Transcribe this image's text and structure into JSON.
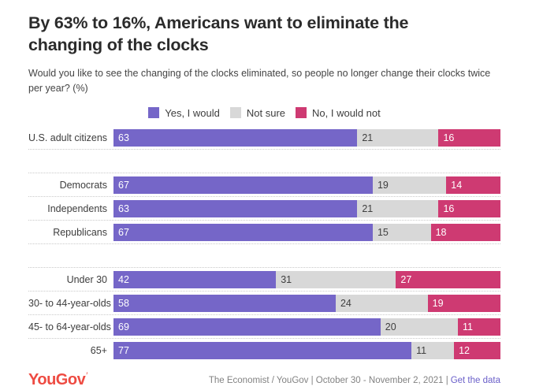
{
  "header": {
    "title": "By 63% to 16%, Americans want to eliminate the changing of the clocks",
    "subtitle": "Would you like to see the changing of the clocks eliminated, so people no longer change their clocks twice per year? (%)"
  },
  "legend": [
    {
      "label": "Yes, I would",
      "color": "#7566C8"
    },
    {
      "label": "Not sure",
      "color": "#D8D8D8"
    },
    {
      "label": "No, I would not",
      "color": "#CE3A72"
    }
  ],
  "chart_data": {
    "type": "bar",
    "orientation": "horizontal",
    "stacked": true,
    "unit": "%",
    "title": "By 63% to 16%, Americans want to eliminate the changing of the clocks",
    "question": "Would you like to see the changing of the clocks eliminated, so people no longer change their clocks twice per year? (%)",
    "series_names": [
      "Yes, I would",
      "Not sure",
      "No, I would not"
    ],
    "colors": [
      "#7566C8",
      "#D8D8D8",
      "#CE3A72"
    ],
    "value_text_colors": [
      "#ffffff",
      "#3f3f3f",
      "#ffffff"
    ],
    "xlim": [
      0,
      100
    ],
    "legend_position": "top-center",
    "grid": false,
    "groups": [
      {
        "rows": [
          {
            "label": "U.S. adult citizens",
            "values": [
              63,
              21,
              16
            ]
          }
        ]
      },
      {
        "rows": [
          {
            "label": "Democrats",
            "values": [
              67,
              19,
              14
            ]
          },
          {
            "label": "Independents",
            "values": [
              63,
              21,
              16
            ]
          },
          {
            "label": "Republicans",
            "values": [
              67,
              15,
              18
            ]
          }
        ]
      },
      {
        "rows": [
          {
            "label": "Under 30",
            "values": [
              42,
              31,
              27
            ]
          },
          {
            "label": "30- to 44-year-olds",
            "values": [
              58,
              24,
              19
            ]
          },
          {
            "label": "45- to 64-year-olds",
            "values": [
              69,
              20,
              11
            ]
          },
          {
            "label": "65+",
            "values": [
              77,
              11,
              12
            ]
          }
        ]
      }
    ]
  },
  "footer": {
    "logo_text": "YouGov",
    "logo_color": "#EE4B42",
    "source_prefix": "The Economist / YouGov | October 30 - November 2, 2021 |",
    "link_label": "Get the data",
    "link_color": "#6A5FC9"
  }
}
